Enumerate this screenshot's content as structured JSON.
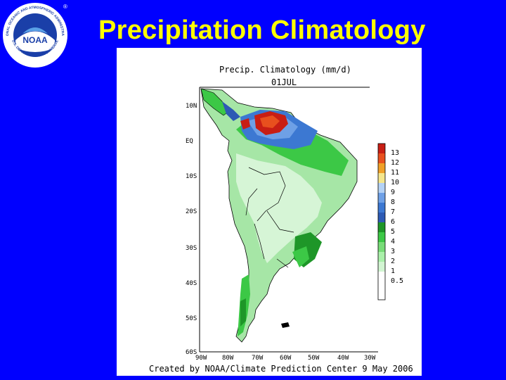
{
  "slide": {
    "title": "Precipitation Climatology"
  },
  "logo": {
    "name": "NOAA",
    "ring_text": "NATIONAL OCEANIC AND ATMOSPHERIC ADMINISTRATION",
    "ring_text_bottom": "U.S. DEPARTMENT OF COMMERCE",
    "mark": "®"
  },
  "map": {
    "title": "Precip. Climatology (mm/d)",
    "date": "01JUL",
    "lat_labels": [
      "10N",
      "EQ",
      "10S",
      "20S",
      "30S",
      "40S",
      "50S",
      "60S"
    ],
    "lon_labels": [
      "90W",
      "80W",
      "70W",
      "60W",
      "50W",
      "40W",
      "30W"
    ],
    "colorbar_levels": [
      "13",
      "12",
      "11",
      "10",
      "9",
      "8",
      "7",
      "6",
      "5",
      "4",
      "3",
      "2",
      "1",
      "0.5"
    ],
    "colorbar_colors": [
      "#c81e14",
      "#e8501e",
      "#f0a028",
      "#f5e68c",
      "#b4d2f5",
      "#6ea0e6",
      "#3c78d2",
      "#2d5ab4",
      "#1e9628",
      "#3cc846",
      "#78dc78",
      "#aaf0aa",
      "#d2f5d2",
      "#ffffff"
    ],
    "footer": "Created by NOAA/Climate Prediction Center 9 May 2006"
  }
}
